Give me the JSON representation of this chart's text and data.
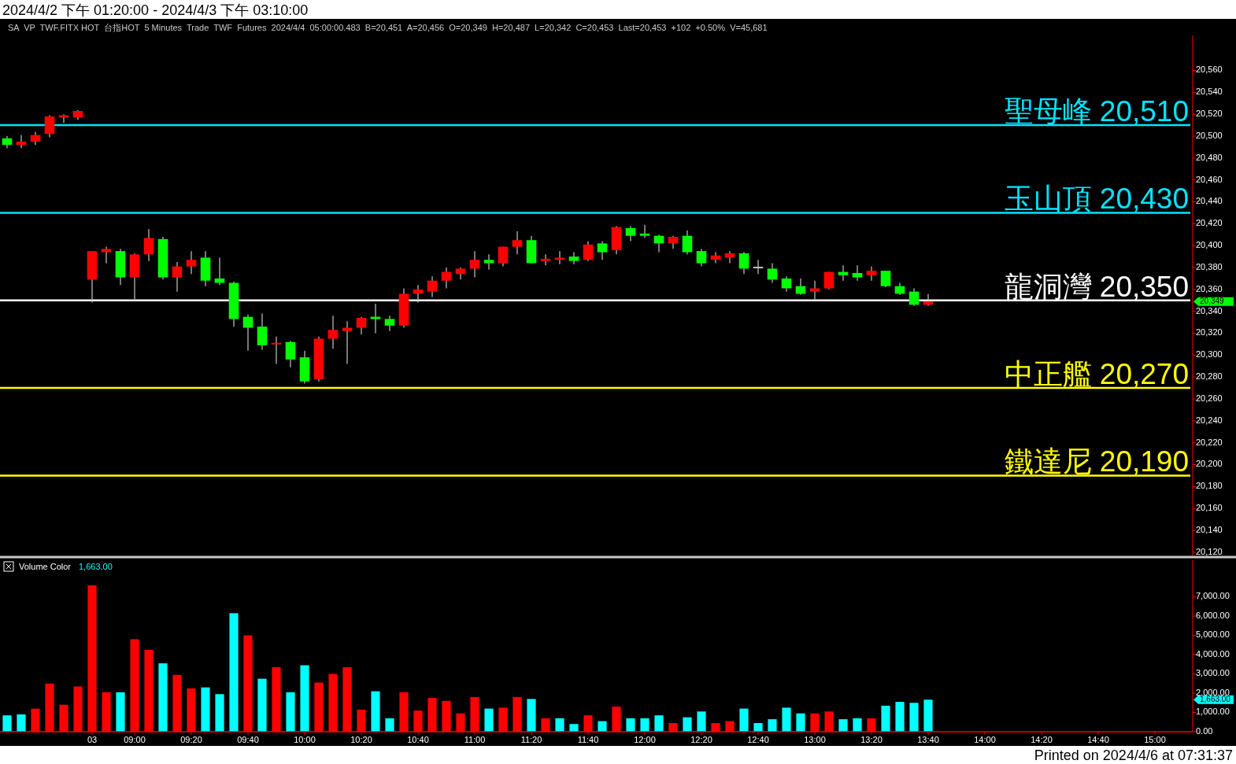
{
  "chart_data": [
    {
      "type": "candlestick",
      "title": "2024/4/2 下午 01:20:00 - 2024/4/3 下午 03:10:00",
      "subtitle": "SA  VP  TWF.FITX HOT  台指HOT  5 Minutes  Trade  TWF  Futures  2024/4/4  05:00:00.483  B=20,451  A=20,456  O=20,349  H=20,487  L=20,342  C=20,453  Last=20,453  +102  +0.50%  V=45,681",
      "categories": [
        null,
        null,
        null,
        null,
        null,
        null,
        null,
        null,
        null,
        null,
        null,
        null,
        null,
        null,
        null,
        null,
        null,
        null,
        null,
        null,
        null,
        null,
        null,
        null,
        null,
        null,
        null,
        null,
        null,
        null,
        null,
        null,
        null,
        null,
        null,
        null,
        null,
        null,
        null,
        null,
        null,
        null,
        null,
        null,
        null,
        null,
        null,
        null,
        null,
        null,
        null,
        null,
        null,
        null,
        null,
        null,
        null,
        null,
        null,
        null,
        null,
        null,
        null,
        null,
        null,
        null,
        null,
        null,
        null,
        null,
        null,
        null,
        null,
        null,
        null,
        null,
        null,
        null,
        null,
        null,
        null,
        null,
        null,
        null
      ],
      "ohlc": [
        [
          20498,
          20500,
          20489,
          20492
        ],
        [
          20492,
          20501,
          20489,
          20495
        ],
        [
          20495,
          20504,
          20492,
          20501
        ],
        [
          20502,
          20519,
          20499,
          20518
        ],
        [
          20517,
          20520,
          20512,
          20519
        ],
        [
          20517,
          20524,
          20515,
          20523
        ],
        [
          20369,
          20395,
          20348,
          20395
        ],
        [
          20394,
          20399,
          20384,
          20397
        ],
        [
          20395,
          20397,
          20364,
          20371
        ],
        [
          20371,
          20393,
          20351,
          20392
        ],
        [
          20392,
          20415,
          20386,
          20407
        ],
        [
          20406,
          20408,
          20369,
          20371
        ],
        [
          20371,
          20385,
          20358,
          20381
        ],
        [
          20381,
          20395,
          20374,
          20387
        ],
        [
          20389,
          20395,
          20363,
          20368
        ],
        [
          20370,
          20389,
          20364,
          20366
        ],
        [
          20366,
          20367,
          20326,
          20333
        ],
        [
          20335,
          20337,
          20304,
          20325
        ],
        [
          20326,
          20338,
          20305,
          20309
        ],
        [
          20310,
          20317,
          20292,
          20311
        ],
        [
          20312,
          20313,
          20289,
          20296
        ],
        [
          20298,
          20304,
          20274,
          20276
        ],
        [
          20278,
          20317,
          20276,
          20315
        ],
        [
          20315,
          20336,
          20306,
          20323
        ],
        [
          20322,
          20331,
          20292,
          20325
        ],
        [
          20325,
          20335,
          20319,
          20334
        ],
        [
          20335,
          20347,
          20320,
          20333
        ],
        [
          20333,
          20336,
          20322,
          20327
        ],
        [
          20327,
          20361,
          20325,
          20356
        ],
        [
          20356,
          20364,
          20348,
          20360
        ],
        [
          20358,
          20372,
          20353,
          20368
        ],
        [
          20368,
          20380,
          20361,
          20376
        ],
        [
          20374,
          20380,
          20369,
          20379
        ],
        [
          20379,
          20395,
          20371,
          20387
        ],
        [
          20387,
          20392,
          20378,
          20384
        ],
        [
          20384,
          20399,
          20381,
          20399
        ],
        [
          20399,
          20413,
          20392,
          20405
        ],
        [
          20405,
          20409,
          20384,
          20384
        ],
        [
          20386,
          20392,
          20382,
          20388
        ],
        [
          20387,
          20395,
          20383,
          20389
        ],
        [
          20390,
          20394,
          20383,
          20386
        ],
        [
          20387,
          20404,
          20386,
          20401
        ],
        [
          20402,
          20404,
          20387,
          20394
        ],
        [
          20396,
          20418,
          20392,
          20417
        ],
        [
          20416,
          20418,
          20404,
          20409
        ],
        [
          20411,
          20419,
          20407,
          20409
        ],
        [
          20409,
          20410,
          20394,
          20402
        ],
        [
          20402,
          20409,
          20397,
          20408
        ],
        [
          20409,
          20414,
          20392,
          20394
        ],
        [
          20395,
          20397,
          20381,
          20384
        ],
        [
          20387,
          20394,
          20384,
          20391
        ],
        [
          20389,
          20395,
          20384,
          20393
        ],
        [
          20393,
          20394,
          20374,
          20379
        ],
        [
          20380,
          20387,
          20374,
          20380
        ],
        [
          20379,
          20384,
          20366,
          20369
        ],
        [
          20370,
          20372,
          20358,
          20361
        ],
        [
          20363,
          20370,
          20355,
          20356
        ],
        [
          20358,
          20368,
          20351,
          20361
        ],
        [
          20361,
          20376,
          20360,
          20376
        ],
        [
          20376,
          20382,
          20368,
          20373
        ],
        [
          20375,
          20382,
          20368,
          20371
        ],
        [
          20373,
          20381,
          20368,
          20377
        ],
        [
          20377,
          20377,
          20362,
          20363
        ],
        [
          20363,
          20366,
          20355,
          20356
        ],
        [
          20358,
          20361,
          20345,
          20346
        ],
        [
          20346,
          20356,
          20345,
          20349
        ],
        null,
        null,
        null,
        null,
        null,
        null,
        null,
        null,
        null,
        null,
        null,
        null,
        null,
        null,
        null,
        null,
        null,
        null
      ],
      "colors": [
        "#00ff00",
        "#ff0000",
        "#ff0000",
        "#ff0000",
        "#ff0000",
        "#ff0000",
        "#ff0000",
        "#ff0000",
        "#00ff00",
        "#ff0000",
        "#ff0000",
        "#00ff00",
        "#ff0000",
        "#ff0000",
        "#00ff00",
        "#00ff00",
        "#00ff00",
        "#00ff00",
        "#00ff00",
        "#ff0000",
        "#00ff00",
        "#00ff00",
        "#ff0000",
        "#ff0000",
        "#ff0000",
        "#ff0000",
        "#00ff00",
        "#00ff00",
        "#ff0000",
        "#ff0000",
        "#ff0000",
        "#ff0000",
        "#ff0000",
        "#ff0000",
        "#00ff00",
        "#ff0000",
        "#ff0000",
        "#00ff00",
        "#ff0000",
        "#ff0000",
        "#00ff00",
        "#ff0000",
        "#00ff00",
        "#ff0000",
        "#00ff00",
        "#00ff00",
        "#00ff00",
        "#ff0000",
        "#00ff00",
        "#00ff00",
        "#ff0000",
        "#ff0000",
        "#00ff00",
        "#c0c0c0",
        "#00ff00",
        "#00ff00",
        "#00ff00",
        "#ff0000",
        "#ff0000",
        "#00ff00",
        "#00ff00",
        "#ff0000",
        "#00ff00",
        "#00ff00",
        "#00ff00",
        "#ff0000",
        null,
        null,
        null,
        null,
        null,
        null,
        null,
        null,
        null,
        null,
        null,
        null,
        null,
        null,
        null,
        null,
        null,
        null
      ],
      "ylim": [
        20117,
        20592
      ],
      "yticks": [
        {
          "value": 20120,
          "label": "20,120"
        },
        {
          "value": 20140,
          "label": "20,140"
        },
        {
          "value": 20160,
          "label": "20,160"
        },
        {
          "value": 20180,
          "label": "20,180"
        },
        {
          "value": 20200,
          "label": "20,200"
        },
        {
          "value": 20220,
          "label": "20,220"
        },
        {
          "value": 20240,
          "label": "20,240"
        },
        {
          "value": 20260,
          "label": "20,260"
        },
        {
          "value": 20280,
          "label": "20,280"
        },
        {
          "value": 20300,
          "label": "20,300"
        },
        {
          "value": 20320,
          "label": "20,320"
        },
        {
          "value": 20340,
          "label": "20,340"
        },
        {
          "value": 20360,
          "label": "20,360"
        },
        {
          "value": 20380,
          "label": "20,380"
        },
        {
          "value": 20400,
          "label": "20,400"
        },
        {
          "value": 20420,
          "label": "20,420"
        },
        {
          "value": 20440,
          "label": "20,440"
        },
        {
          "value": 20460,
          "label": "20,460"
        },
        {
          "value": 20480,
          "label": "20,480"
        },
        {
          "value": 20500,
          "label": "20,500"
        },
        {
          "value": 20520,
          "label": "20,520"
        },
        {
          "value": 20540,
          "label": "20,540"
        },
        {
          "value": 20560,
          "label": "20,560"
        }
      ],
      "ref_lines": [
        {
          "axis": "y",
          "value": 20510,
          "label": "聖母峰 20,510",
          "color": "#00e5ff"
        },
        {
          "axis": "y",
          "value": 20430,
          "label": "玉山頂 20,430",
          "color": "#00e5ff"
        },
        {
          "axis": "y",
          "value": 20350,
          "label": "龍洞灣 20,350",
          "color": "#ffffff"
        },
        {
          "axis": "y",
          "value": 20270,
          "label": "中正艦 20,270",
          "color": "#ffff00"
        },
        {
          "axis": "y",
          "value": 20190,
          "label": "鐵達尼 20,190",
          "color": "#ffff00"
        }
      ],
      "annotations": [
        "20,349"
      ],
      "tick_labels": "y"
    },
    {
      "type": "bar",
      "categories": [
        null,
        null,
        null,
        null,
        null,
        null,
        "03",
        null,
        null,
        "09:00",
        null,
        null,
        null,
        "09:20",
        null,
        null,
        null,
        "09:40",
        null,
        null,
        null,
        "10:00",
        null,
        null,
        null,
        "10:20",
        null,
        null,
        null,
        "10:40",
        null,
        null,
        null,
        "11:00",
        null,
        null,
        null,
        "11:20",
        null,
        null,
        null,
        "11:40",
        null,
        null,
        null,
        "12:00",
        null,
        null,
        null,
        "12:20",
        null,
        null,
        null,
        "12:40",
        null,
        null,
        null,
        "13:00",
        null,
        null,
        null,
        "13:20",
        null,
        null,
        null,
        "13:40",
        null,
        null,
        null,
        "14:00",
        null,
        null,
        null,
        "14:20",
        null,
        null,
        null,
        "14:40",
        null,
        null,
        null,
        "15:00",
        null,
        null
      ],
      "values": [
        850,
        900,
        1200,
        2500,
        1400,
        2350,
        7600,
        2050,
        2050,
        4800,
        4250,
        3550,
        2950,
        2250,
        2300,
        1950,
        6150,
        5000,
        2750,
        3350,
        2050,
        3450,
        2550,
        3000,
        3350,
        1150,
        2100,
        700,
        2050,
        1100,
        1750,
        1600,
        950,
        1800,
        1200,
        1250,
        1800,
        1700,
        700,
        700,
        400,
        850,
        550,
        1300,
        700,
        700,
        850,
        450,
        750,
        1050,
        450,
        550,
        1200,
        450,
        650,
        1250,
        950,
        950,
        1050,
        650,
        700,
        700,
        1350,
        1550,
        1500,
        1663,
        null,
        null,
        null,
        null,
        null,
        null,
        null,
        null,
        null,
        null,
        null,
        null,
        null,
        null,
        null,
        null,
        null,
        null
      ],
      "colors": [
        "#00ffff",
        "#00ffff",
        "#ff0000",
        "#ff0000",
        "#ff0000",
        "#ff0000",
        "#ff0000",
        "#ff0000",
        "#00ffff",
        "#ff0000",
        "#ff0000",
        "#00ffff",
        "#ff0000",
        "#ff0000",
        "#00ffff",
        "#00ffff",
        "#00ffff",
        "#ff0000",
        "#00ffff",
        "#ff0000",
        "#00ffff",
        "#00ffff",
        "#ff0000",
        "#ff0000",
        "#ff0000",
        "#ff0000",
        "#00ffff",
        "#00ffff",
        "#ff0000",
        "#ff0000",
        "#ff0000",
        "#ff0000",
        "#ff0000",
        "#ff0000",
        "#00ffff",
        "#ff0000",
        "#ff0000",
        "#00ffff",
        "#ff0000",
        "#00ffff",
        "#00ffff",
        "#ff0000",
        "#00ffff",
        "#ff0000",
        "#00ffff",
        "#00ffff",
        "#00ffff",
        "#ff0000",
        "#00ffff",
        "#00ffff",
        "#ff0000",
        "#ff0000",
        "#00ffff",
        "#00ffff",
        "#00ffff",
        "#00ffff",
        "#00ffff",
        "#ff0000",
        "#ff0000",
        "#00ffff",
        "#00ffff",
        "#ff0000",
        "#00ffff",
        "#00ffff",
        "#00ffff",
        "#00ffff",
        null,
        null,
        null,
        null,
        null,
        null,
        null,
        null,
        null,
        null,
        null,
        null,
        null,
        null,
        null,
        null,
        null,
        null
      ],
      "ylim": [
        0,
        8900
      ],
      "yticks": [
        {
          "value": 0,
          "label": "0.00"
        },
        {
          "value": 1000,
          "label": "1,000.00"
        },
        {
          "value": 2000,
          "label": "2,000.00"
        },
        {
          "value": 3000,
          "label": "3,000.00"
        },
        {
          "value": 4000,
          "label": "4,000.00"
        },
        {
          "value": 5000,
          "label": "5,000.00"
        },
        {
          "value": 6000,
          "label": "6,000.00"
        },
        {
          "value": 7000,
          "label": "7,000.00"
        }
      ],
      "annotations": [
        "Volume Color",
        "1,663.00",
        "1,663.00",
        "Printed on 2024/4/6 at 07:31:37"
      ]
    }
  ]
}
